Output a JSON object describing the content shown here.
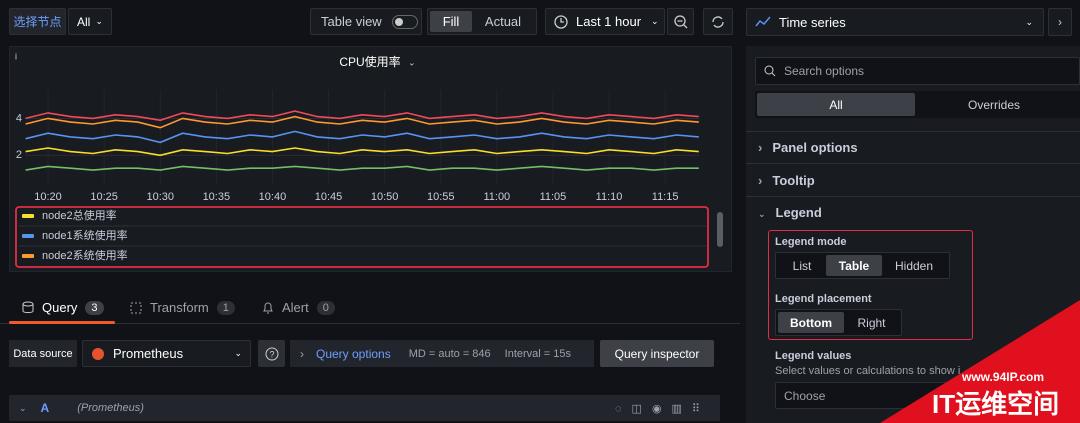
{
  "toolbar": {
    "node_label": "选择节点",
    "node_value": "All",
    "table_view": "Table view",
    "display_modes": [
      "Fill",
      "Actual"
    ],
    "time_range": "Last 1 hour"
  },
  "visualization": "Time series",
  "chart_data": {
    "type": "line",
    "title": "CPU使用率",
    "x": [
      "10:18",
      "10:20",
      "10:22",
      "10:24",
      "10:26",
      "10:28",
      "10:30",
      "10:32",
      "10:34",
      "10:36",
      "10:38",
      "10:40",
      "10:42",
      "10:44",
      "10:46",
      "10:48",
      "10:50",
      "10:52",
      "10:54",
      "10:56",
      "10:58",
      "11:00",
      "11:02",
      "11:04",
      "11:06",
      "11:08",
      "11:10",
      "11:12",
      "11:14",
      "11:16",
      "11:18"
    ],
    "xlim": [
      "10:18",
      "11:18"
    ],
    "xticks": [
      "10:20",
      "10:25",
      "10:30",
      "10:35",
      "10:40",
      "10:45",
      "10:50",
      "10:55",
      "11:00",
      "11:05",
      "11:10",
      "11:15"
    ],
    "ylim": [
      0.5,
      5
    ],
    "yticks": [
      2,
      4
    ],
    "grid": true,
    "series": [
      {
        "name": "node2总使用率",
        "color": "#fade2a",
        "values": [
          2.2,
          2.4,
          2.2,
          2.1,
          2.3,
          2.2,
          2.0,
          2.3,
          2.2,
          2.1,
          2.3,
          2.2,
          2.4,
          2.2,
          2.1,
          2.3,
          2.2,
          2.3,
          2.1,
          2.2,
          2.3,
          2.1,
          2.2,
          2.3,
          2.2,
          2.1,
          2.3,
          2.2,
          2.1,
          2.3,
          2.2
        ]
      },
      {
        "name": "node1系统使用率",
        "color": "#5794f2",
        "values": [
          2.9,
          3.2,
          3.0,
          2.9,
          3.1,
          3.0,
          2.7,
          3.2,
          3.0,
          2.9,
          3.1,
          3.0,
          3.3,
          3.0,
          2.9,
          3.1,
          3.0,
          3.2,
          2.9,
          3.0,
          3.1,
          2.9,
          3.0,
          3.2,
          3.0,
          2.9,
          3.1,
          3.0,
          2.9,
          3.1,
          3.0
        ]
      },
      {
        "name": "node2系统使用率",
        "color": "#ff9830",
        "values": [
          3.7,
          4.0,
          3.8,
          3.7,
          3.9,
          3.8,
          3.5,
          4.0,
          3.8,
          3.7,
          3.9,
          3.8,
          4.1,
          3.8,
          3.7,
          3.9,
          3.8,
          4.0,
          3.7,
          3.8,
          3.9,
          3.7,
          3.8,
          4.0,
          3.8,
          3.7,
          3.9,
          3.8,
          3.7,
          3.9,
          3.8
        ]
      },
      {
        "color": "#f2495c",
        "values": [
          4.0,
          4.3,
          4.1,
          4.0,
          4.2,
          4.1,
          3.9,
          4.3,
          4.1,
          4.0,
          4.2,
          4.1,
          4.4,
          4.1,
          4.0,
          4.2,
          4.1,
          4.3,
          4.0,
          4.1,
          4.2,
          4.0,
          4.1,
          4.3,
          4.1,
          4.0,
          4.2,
          4.1,
          4.0,
          4.2,
          4.1
        ]
      },
      {
        "color": "#73bf69",
        "values": [
          1.2,
          1.4,
          1.3,
          1.2,
          1.3,
          1.3,
          1.2,
          1.4,
          1.3,
          1.2,
          1.3,
          1.3,
          1.4,
          1.3,
          1.2,
          1.3,
          1.3,
          1.4,
          1.2,
          1.3,
          1.3,
          1.2,
          1.3,
          1.4,
          1.3,
          1.2,
          1.3,
          1.3,
          1.2,
          1.3,
          1.3
        ]
      }
    ]
  },
  "query_tabs": [
    {
      "label": "Query",
      "count": 3
    },
    {
      "label": "Transform",
      "count": 1
    },
    {
      "label": "Alert",
      "count": 0
    }
  ],
  "query_bar": {
    "data_source_label": "Data source",
    "data_source": "Prometheus",
    "query_options": "Query options",
    "md": "MD = auto = 846",
    "interval": "Interval = 15s",
    "inspector": "Query inspector"
  },
  "queries": [
    {
      "ref": "A",
      "source": "(Prometheus)"
    }
  ],
  "options": {
    "search_placeholder": "Search options",
    "tabs": [
      "All",
      "Overrides"
    ],
    "sections": [
      "Panel options",
      "Tooltip",
      "Legend"
    ],
    "legend_mode": {
      "label": "Legend mode",
      "options": [
        "List",
        "Table",
        "Hidden"
      ]
    },
    "legend_placement": {
      "label": "Legend placement",
      "options": [
        "Bottom",
        "Right"
      ]
    },
    "legend_values": {
      "label": "Legend values",
      "description": "Select values or calculations to show i",
      "placeholder": "Choose"
    }
  },
  "watermark": {
    "url": "www.94IP.com",
    "name": "IT运维空间"
  }
}
